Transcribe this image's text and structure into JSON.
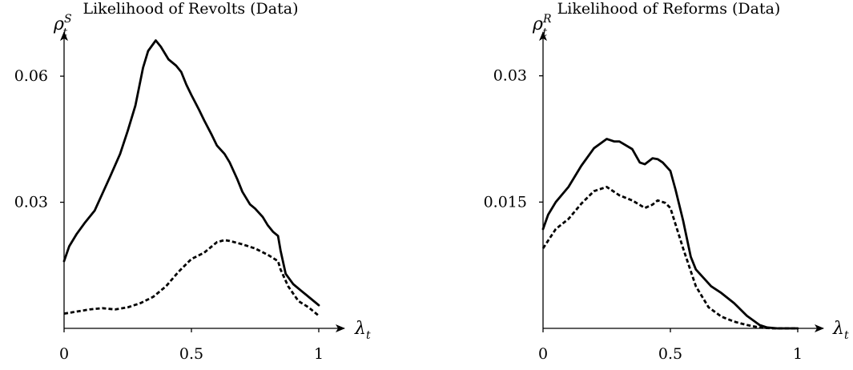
{
  "chart_data": [
    {
      "type": "line",
      "title": "Likelihood of Revolts (Data)",
      "ylabel_main": "ρ",
      "ylabel_sub": "t",
      "ylabel_sup": "S",
      "xlabel_main": "λ",
      "xlabel_sub": "t",
      "xlim": [
        0,
        1.1
      ],
      "ylim": [
        0,
        0.0705
      ],
      "xticks": [
        0,
        0.5,
        1
      ],
      "xtick_labels": [
        "0",
        "0.5",
        "1"
      ],
      "yticks": [
        0.03,
        0.06
      ],
      "ytick_labels": [
        "0.03",
        "0.06"
      ],
      "series": [
        {
          "style": "solid",
          "x": [
            0,
            0.02,
            0.05,
            0.08,
            0.12,
            0.15,
            0.18,
            0.22,
            0.25,
            0.28,
            0.31,
            0.33,
            0.36,
            0.38,
            0.41,
            0.44,
            0.46,
            0.48,
            0.5,
            0.53,
            0.55,
            0.58,
            0.6,
            0.63,
            0.65,
            0.68,
            0.7,
            0.73,
            0.75,
            0.78,
            0.8,
            0.82,
            0.84,
            0.85,
            0.87,
            0.9,
            0.93,
            0.96,
            1.0
          ],
          "y": [
            0.016,
            0.0195,
            0.0225,
            0.025,
            0.028,
            0.032,
            0.036,
            0.0415,
            0.047,
            0.053,
            0.062,
            0.066,
            0.0685,
            0.067,
            0.064,
            0.0625,
            0.061,
            0.058,
            0.0555,
            0.052,
            0.0495,
            0.046,
            0.0435,
            0.0415,
            0.0395,
            0.0355,
            0.0325,
            0.0295,
            0.0285,
            0.0265,
            0.0245,
            0.023,
            0.022,
            0.0185,
            0.013,
            0.0105,
            0.009,
            0.0075,
            0.0055
          ]
        },
        {
          "style": "dashed",
          "x": [
            0,
            0.05,
            0.1,
            0.15,
            0.2,
            0.25,
            0.3,
            0.35,
            0.4,
            0.45,
            0.5,
            0.55,
            0.6,
            0.63,
            0.65,
            0.7,
            0.75,
            0.8,
            0.84,
            0.85,
            0.88,
            0.92,
            0.96,
            1.0
          ],
          "y": [
            0.0035,
            0.004,
            0.0045,
            0.0048,
            0.0045,
            0.005,
            0.006,
            0.0075,
            0.01,
            0.0135,
            0.0165,
            0.018,
            0.0205,
            0.021,
            0.0208,
            0.02,
            0.019,
            0.0175,
            0.016,
            0.014,
            0.01,
            0.0065,
            0.005,
            0.003
          ]
        }
      ]
    },
    {
      "type": "line",
      "title": "Likelihood of Reforms (Data)",
      "ylabel_main": "ρ",
      "ylabel_sub": "t",
      "ylabel_sup": "R",
      "xlabel_main": "λ",
      "xlabel_sub": "t",
      "xlim": [
        0,
        1.1
      ],
      "ylim": [
        0,
        0.0352
      ],
      "xticks": [
        0,
        0.5,
        1
      ],
      "xtick_labels": [
        "0",
        "0.5",
        "1"
      ],
      "yticks": [
        0.015,
        0.03
      ],
      "ytick_labels": [
        "0.015",
        "0.03"
      ],
      "series": [
        {
          "style": "solid",
          "x": [
            0,
            0.02,
            0.05,
            0.1,
            0.15,
            0.2,
            0.25,
            0.28,
            0.3,
            0.35,
            0.38,
            0.4,
            0.43,
            0.45,
            0.47,
            0.5,
            0.52,
            0.55,
            0.58,
            0.6,
            0.63,
            0.66,
            0.7,
            0.75,
            0.8,
            0.85,
            0.88,
            0.92,
            1.0
          ],
          "y": [
            0.0118,
            0.0135,
            0.015,
            0.0168,
            0.0193,
            0.0214,
            0.0225,
            0.0222,
            0.0222,
            0.0213,
            0.0197,
            0.0195,
            0.0202,
            0.0201,
            0.0197,
            0.0187,
            0.0165,
            0.0128,
            0.0085,
            0.007,
            0.006,
            0.005,
            0.0042,
            0.003,
            0.0015,
            0.0004,
            0.0001,
            0,
            0
          ]
        },
        {
          "style": "dashed",
          "x": [
            0,
            0.05,
            0.1,
            0.15,
            0.2,
            0.25,
            0.28,
            0.3,
            0.35,
            0.4,
            0.43,
            0.45,
            0.48,
            0.5,
            0.55,
            0.6,
            0.65,
            0.7,
            0.75,
            0.8,
            0.85,
            0.9,
            1.0
          ],
          "y": [
            0.0095,
            0.0118,
            0.013,
            0.0148,
            0.0163,
            0.0168,
            0.0162,
            0.0158,
            0.0152,
            0.0143,
            0.0147,
            0.0152,
            0.0149,
            0.0143,
            0.0095,
            0.005,
            0.0025,
            0.0014,
            0.0008,
            0.0004,
            0.0001,
            0,
            0
          ]
        }
      ]
    }
  ]
}
